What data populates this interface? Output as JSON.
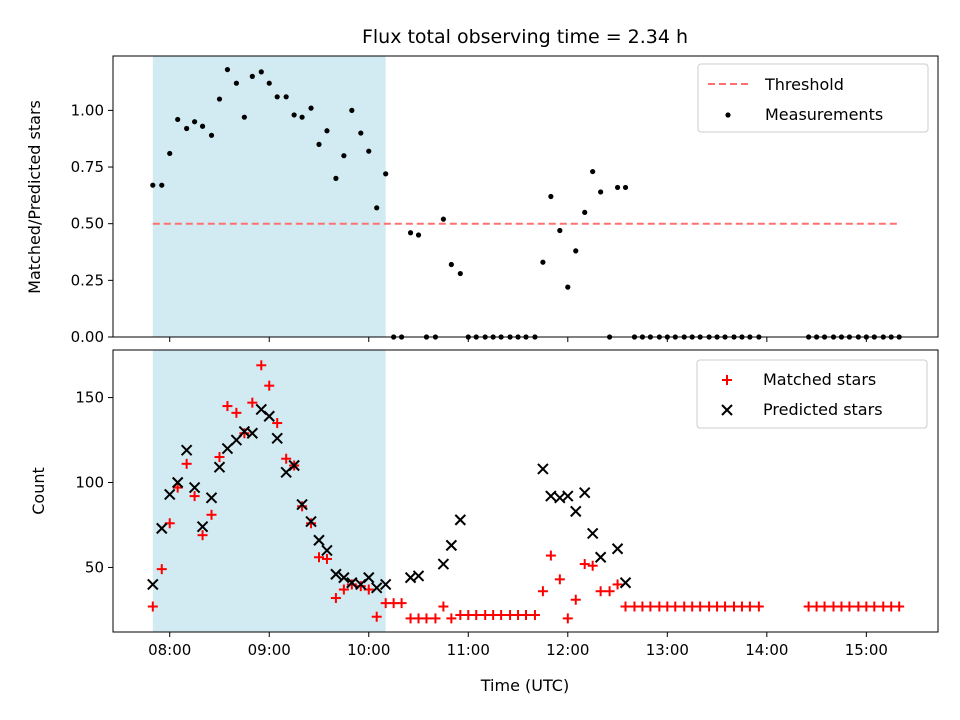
{
  "title": "Flux total observing time = 2.34 h",
  "colors": {
    "threshold": "#ff7070",
    "measurement": "#000000",
    "matched": "#ff0000",
    "predicted": "#000000",
    "shade": "#add8e6"
  },
  "chart_data": [
    {
      "type": "scatter",
      "panel": "top",
      "ylabel": "Matched/Predicted stars",
      "xlabel": "",
      "xlim": [
        7.43,
        15.72
      ],
      "ylim": [
        0,
        1.24
      ],
      "yticks": [
        0.0,
        0.25,
        0.5,
        0.75,
        1.0
      ],
      "ytick_labels": [
        "0.00",
        "0.25",
        "0.50",
        "0.75",
        "1.00"
      ],
      "xticks": [
        8,
        9,
        10,
        11,
        12,
        13,
        14,
        15
      ],
      "shaded_region": [
        7.83,
        10.17
      ],
      "threshold": {
        "name": "Threshold",
        "y": 0.5,
        "x_range": [
          7.83,
          15.33
        ]
      },
      "legend": [
        "Threshold",
        "Measurements"
      ],
      "series": [
        {
          "name": "Measurements",
          "marker": "dot",
          "x": [
            7.83,
            7.92,
            8.0,
            8.08,
            8.17,
            8.25,
            8.33,
            8.42,
            8.5,
            8.58,
            8.67,
            8.75,
            8.83,
            8.92,
            9.0,
            9.08,
            9.17,
            9.25,
            9.33,
            9.42,
            9.5,
            9.58,
            9.67,
            9.75,
            9.83,
            9.92,
            10.0,
            10.08,
            10.17,
            10.25,
            10.33,
            10.42,
            10.5,
            10.58,
            10.67,
            10.75,
            10.83,
            10.92,
            11.0,
            11.08,
            11.17,
            11.25,
            11.33,
            11.42,
            11.5,
            11.58,
            11.67,
            11.75,
            11.83,
            11.92,
            12.0,
            12.08,
            12.17,
            12.25,
            12.33,
            12.42,
            12.5,
            12.58,
            12.67,
            12.75,
            12.83,
            12.92,
            13.0,
            13.08,
            13.17,
            13.25,
            13.33,
            13.42,
            13.5,
            13.58,
            13.67,
            13.75,
            13.83,
            13.92,
            14.42,
            14.5,
            14.58,
            14.67,
            14.75,
            14.83,
            14.92,
            15.0,
            15.08,
            15.17,
            15.25,
            15.33
          ],
          "y": [
            0.67,
            0.67,
            0.81,
            0.96,
            0.92,
            0.95,
            0.93,
            0.89,
            1.05,
            1.18,
            1.12,
            0.97,
            1.15,
            1.17,
            1.12,
            1.06,
            1.06,
            0.98,
            0.97,
            1.01,
            0.85,
            0.91,
            0.7,
            0.8,
            1.0,
            0.9,
            0.82,
            0.57,
            0.72,
            0.0,
            0.0,
            0.46,
            0.45,
            0.0,
            0.0,
            0.52,
            0.32,
            0.28,
            0.0,
            0.0,
            0.0,
            0.0,
            0.0,
            0.0,
            0.0,
            0.0,
            0.0,
            0.33,
            0.62,
            0.47,
            0.22,
            0.38,
            0.55,
            0.73,
            0.64,
            0.0,
            0.66,
            0.66,
            0.0,
            0.0,
            0.0,
            0.0,
            0.0,
            0.0,
            0.0,
            0.0,
            0.0,
            0.0,
            0.0,
            0.0,
            0.0,
            0.0,
            0.0,
            0.0,
            0.0,
            0.0,
            0.0,
            0.0,
            0.0,
            0.0,
            0.0,
            0.0,
            0.0,
            0.0,
            0.0,
            0.0
          ]
        }
      ]
    },
    {
      "type": "scatter",
      "panel": "bottom",
      "ylabel": "Count",
      "xlabel": "Time (UTC)",
      "xlim": [
        7.43,
        15.72
      ],
      "ylim": [
        12,
        178
      ],
      "yticks": [
        50,
        100,
        150
      ],
      "ytick_labels": [
        "50",
        "100",
        "150"
      ],
      "xticks": [
        8,
        9,
        10,
        11,
        12,
        13,
        14,
        15
      ],
      "xtick_labels": [
        "08:00",
        "09:00",
        "10:00",
        "11:00",
        "12:00",
        "13:00",
        "14:00",
        "15:00"
      ],
      "shaded_region": [
        7.83,
        10.17
      ],
      "legend": [
        "Matched stars",
        "Predicted stars"
      ],
      "series": [
        {
          "name": "Matched stars",
          "marker": "plus",
          "x": [
            7.83,
            7.92,
            8.0,
            8.08,
            8.17,
            8.25,
            8.33,
            8.42,
            8.5,
            8.58,
            8.67,
            8.75,
            8.83,
            8.92,
            9.0,
            9.08,
            9.17,
            9.25,
            9.33,
            9.42,
            9.5,
            9.58,
            9.67,
            9.75,
            9.83,
            9.92,
            10.0,
            10.08,
            10.17,
            10.25,
            10.33,
            10.42,
            10.5,
            10.58,
            10.67,
            10.75,
            10.83,
            10.92,
            11.0,
            11.08,
            11.17,
            11.25,
            11.33,
            11.42,
            11.5,
            11.58,
            11.67,
            11.75,
            11.83,
            11.92,
            12.0,
            12.08,
            12.17,
            12.25,
            12.33,
            12.42,
            12.5,
            12.58,
            12.67,
            12.75,
            12.83,
            12.92,
            13.0,
            13.08,
            13.17,
            13.25,
            13.33,
            13.42,
            13.5,
            13.58,
            13.67,
            13.75,
            13.83,
            13.92,
            14.42,
            14.5,
            14.58,
            14.67,
            14.75,
            14.83,
            14.92,
            15.0,
            15.08,
            15.17,
            15.25,
            15.33
          ],
          "y": [
            27,
            49,
            76,
            97,
            111,
            92,
            69,
            81,
            115,
            145,
            141,
            129,
            147,
            169,
            157,
            135,
            114,
            110,
            86,
            76,
            56,
            55,
            32,
            37,
            40,
            39,
            37,
            21,
            29,
            29,
            29,
            20,
            20,
            20,
            20,
            27,
            20,
            22,
            22,
            22,
            22,
            22,
            22,
            22,
            22,
            22,
            22,
            36,
            57,
            43,
            20,
            31,
            52,
            51,
            36,
            36,
            40,
            27,
            27,
            27,
            27,
            27,
            27,
            27,
            27,
            27,
            27,
            27,
            27,
            27,
            27,
            27,
            27,
            27,
            27,
            27,
            27,
            27,
            27,
            27,
            27,
            27,
            27,
            27,
            27,
            27
          ]
        },
        {
          "name": "Predicted stars",
          "marker": "x",
          "x": [
            7.83,
            7.92,
            8.0,
            8.08,
            8.17,
            8.25,
            8.33,
            8.42,
            8.5,
            8.58,
            8.67,
            8.75,
            8.83,
            8.92,
            9.0,
            9.08,
            9.17,
            9.25,
            9.33,
            9.42,
            9.5,
            9.58,
            9.67,
            9.75,
            9.83,
            9.92,
            10.0,
            10.08,
            10.17,
            10.42,
            10.5,
            10.75,
            10.83,
            10.92,
            11.75,
            11.83,
            11.92,
            12.0,
            12.08,
            12.17,
            12.25,
            12.33,
            12.5,
            12.58
          ],
          "y": [
            40,
            73,
            93,
            100,
            119,
            97,
            74,
            91,
            109,
            120,
            125,
            130,
            129,
            143,
            139,
            126,
            106,
            110,
            87,
            77,
            66,
            60,
            46,
            44,
            41,
            40,
            44,
            38,
            40,
            44,
            45,
            52,
            63,
            78,
            108,
            92,
            91,
            92,
            83,
            94,
            70,
            56,
            61,
            41
          ]
        }
      ]
    }
  ]
}
